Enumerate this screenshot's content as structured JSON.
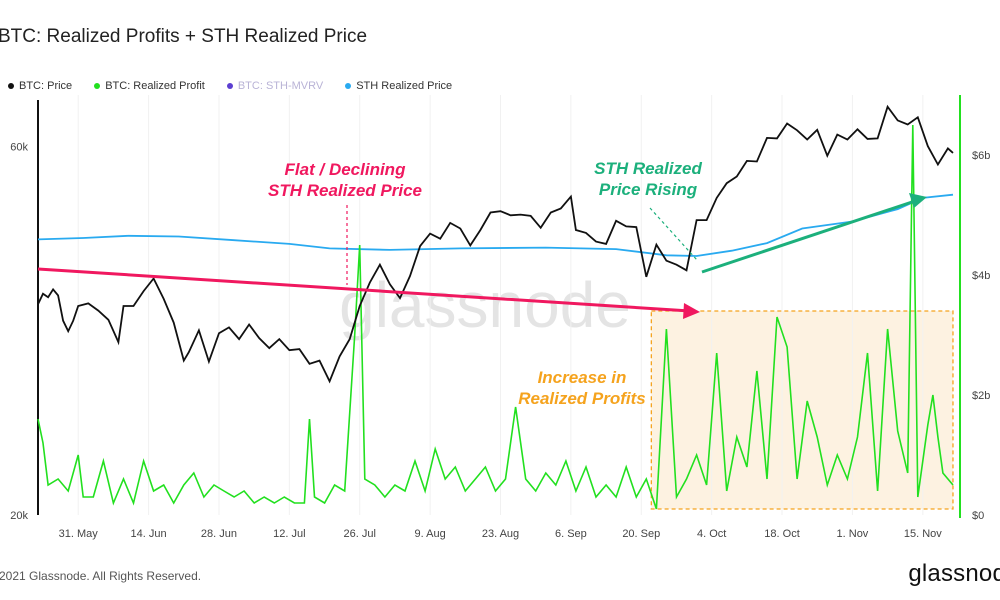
{
  "chart_data": {
    "type": "line",
    "title": "BTC: Realized Profits + STH Realized Price",
    "legend": [
      {
        "name": "BTC: Price",
        "color": "#111111",
        "visible": true
      },
      {
        "name": "BTC: Realized Profit",
        "color": "#22e01f",
        "visible": true
      },
      {
        "name": "BTC: STH-MVRV",
        "color": "#5c3fd1",
        "visible": false
      },
      {
        "name": "STH Realized Price",
        "color": "#29aaf0",
        "visible": true
      }
    ],
    "legend_position": "top-left",
    "grid": true,
    "x_axis": {
      "type": "date",
      "range": [
        "2021-05-23",
        "2021-11-22"
      ],
      "ticks": [
        {
          "date": "2021-05-31",
          "label": "31. May"
        },
        {
          "date": "2021-06-14",
          "label": "14. Jun"
        },
        {
          "date": "2021-06-28",
          "label": "28. Jun"
        },
        {
          "date": "2021-07-12",
          "label": "12. Jul"
        },
        {
          "date": "2021-07-26",
          "label": "26. Jul"
        },
        {
          "date": "2021-08-09",
          "label": "9. Aug"
        },
        {
          "date": "2021-08-23",
          "label": "23. Aug"
        },
        {
          "date": "2021-09-06",
          "label": "6. Sep"
        },
        {
          "date": "2021-09-20",
          "label": "20. Sep"
        },
        {
          "date": "2021-10-04",
          "label": "4. Oct"
        },
        {
          "date": "2021-10-18",
          "label": "18. Oct"
        },
        {
          "date": "2021-11-01",
          "label": "1. Nov"
        },
        {
          "date": "2021-11-15",
          "label": "15. Nov"
        }
      ]
    },
    "y_left": {
      "scale": "log",
      "range": [
        20000,
        70000
      ],
      "ticks": [
        {
          "value": 20000,
          "label": "20k"
        },
        {
          "value": 60000,
          "label": "60k"
        }
      ]
    },
    "y_right": {
      "scale": "linear",
      "range": [
        0,
        7000000000
      ],
      "ticks": [
        {
          "value": 0,
          "label": "$0"
        },
        {
          "value": 2000000000,
          "label": "$2b"
        },
        {
          "value": 4000000000,
          "label": "$4b"
        },
        {
          "value": 6000000000,
          "label": "$6b"
        }
      ]
    },
    "series": [
      {
        "name": "BTC: Price",
        "axis": "left",
        "color": "#111111",
        "points": [
          [
            "2021-05-23",
            37500
          ],
          [
            "2021-05-24",
            38700
          ],
          [
            "2021-05-25",
            38300
          ],
          [
            "2021-05-26",
            39200
          ],
          [
            "2021-05-27",
            38500
          ],
          [
            "2021-05-28",
            35700
          ],
          [
            "2021-05-29",
            34600
          ],
          [
            "2021-05-30",
            35700
          ],
          [
            "2021-05-31",
            37300
          ],
          [
            "2021-06-02",
            37600
          ],
          [
            "2021-06-04",
            36800
          ],
          [
            "2021-06-06",
            35800
          ],
          [
            "2021-06-08",
            33500
          ],
          [
            "2021-06-09",
            37300
          ],
          [
            "2021-06-11",
            37300
          ],
          [
            "2021-06-13",
            39000
          ],
          [
            "2021-06-15",
            40500
          ],
          [
            "2021-06-17",
            38100
          ],
          [
            "2021-06-19",
            35500
          ],
          [
            "2021-06-21",
            31700
          ],
          [
            "2021-06-22",
            32500
          ],
          [
            "2021-06-24",
            34700
          ],
          [
            "2021-06-26",
            31600
          ],
          [
            "2021-06-28",
            34400
          ],
          [
            "2021-06-30",
            35000
          ],
          [
            "2021-07-02",
            33800
          ],
          [
            "2021-07-04",
            35300
          ],
          [
            "2021-07-06",
            33900
          ],
          [
            "2021-07-08",
            32900
          ],
          [
            "2021-07-10",
            33800
          ],
          [
            "2021-07-12",
            32700
          ],
          [
            "2021-07-14",
            32800
          ],
          [
            "2021-07-16",
            31400
          ],
          [
            "2021-07-18",
            31700
          ],
          [
            "2021-07-20",
            29800
          ],
          [
            "2021-07-22",
            32100
          ],
          [
            "2021-07-24",
            33800
          ],
          [
            "2021-07-26",
            37300
          ],
          [
            "2021-07-28",
            40000
          ],
          [
            "2021-07-30",
            42200
          ],
          [
            "2021-08-01",
            39800
          ],
          [
            "2021-08-03",
            38200
          ],
          [
            "2021-08-05",
            40800
          ],
          [
            "2021-08-07",
            44600
          ],
          [
            "2021-08-09",
            46300
          ],
          [
            "2021-08-11",
            45600
          ],
          [
            "2021-08-13",
            47800
          ],
          [
            "2021-08-15",
            47000
          ],
          [
            "2021-08-17",
            44700
          ],
          [
            "2021-08-19",
            46800
          ],
          [
            "2021-08-21",
            49300
          ],
          [
            "2021-08-23",
            49500
          ],
          [
            "2021-08-25",
            48900
          ],
          [
            "2021-08-27",
            49000
          ],
          [
            "2021-08-29",
            48800
          ],
          [
            "2021-08-31",
            47100
          ],
          [
            "2021-09-02",
            49300
          ],
          [
            "2021-09-04",
            49900
          ],
          [
            "2021-09-06",
            51700
          ],
          [
            "2021-09-07",
            46800
          ],
          [
            "2021-09-09",
            46400
          ],
          [
            "2021-09-11",
            45200
          ],
          [
            "2021-09-13",
            44900
          ],
          [
            "2021-09-15",
            48100
          ],
          [
            "2021-09-17",
            47300
          ],
          [
            "2021-09-19",
            47200
          ],
          [
            "2021-09-21",
            40700
          ],
          [
            "2021-09-23",
            44800
          ],
          [
            "2021-09-25",
            42700
          ],
          [
            "2021-09-27",
            42200
          ],
          [
            "2021-09-29",
            41500
          ],
          [
            "2021-10-01",
            48200
          ],
          [
            "2021-10-03",
            48200
          ],
          [
            "2021-10-05",
            51500
          ],
          [
            "2021-10-07",
            53800
          ],
          [
            "2021-10-09",
            54900
          ],
          [
            "2021-10-11",
            57500
          ],
          [
            "2021-10-13",
            57400
          ],
          [
            "2021-10-15",
            61600
          ],
          [
            "2021-10-17",
            61500
          ],
          [
            "2021-10-19",
            64300
          ],
          [
            "2021-10-21",
            63000
          ],
          [
            "2021-10-23",
            61300
          ],
          [
            "2021-10-25",
            63100
          ],
          [
            "2021-10-27",
            58400
          ],
          [
            "2021-10-29",
            62200
          ],
          [
            "2021-10-31",
            61300
          ],
          [
            "2021-11-02",
            63200
          ],
          [
            "2021-11-04",
            61400
          ],
          [
            "2021-11-06",
            61500
          ],
          [
            "2021-11-08",
            67600
          ],
          [
            "2021-11-10",
            64900
          ],
          [
            "2021-11-12",
            64100
          ],
          [
            "2021-11-14",
            65500
          ],
          [
            "2021-11-16",
            60100
          ],
          [
            "2021-11-18",
            56900
          ],
          [
            "2021-11-20",
            59700
          ],
          [
            "2021-11-21",
            58900
          ]
        ]
      },
      {
        "name": "STH Realized Price",
        "axis": "left",
        "color": "#29aaf0",
        "points": [
          [
            "2021-05-23",
            45500
          ],
          [
            "2021-06-01",
            45700
          ],
          [
            "2021-06-10",
            46000
          ],
          [
            "2021-06-20",
            45900
          ],
          [
            "2021-07-01",
            45400
          ],
          [
            "2021-07-12",
            44900
          ],
          [
            "2021-07-20",
            44300
          ],
          [
            "2021-08-01",
            44100
          ],
          [
            "2021-08-15",
            44300
          ],
          [
            "2021-09-01",
            44400
          ],
          [
            "2021-09-15",
            44200
          ],
          [
            "2021-09-25",
            43400
          ],
          [
            "2021-10-01",
            43300
          ],
          [
            "2021-10-08",
            44000
          ],
          [
            "2021-10-15",
            45000
          ],
          [
            "2021-10-22",
            47000
          ],
          [
            "2021-11-01",
            48000
          ],
          [
            "2021-11-10",
            49800
          ],
          [
            "2021-11-15",
            51500
          ],
          [
            "2021-11-21",
            52000
          ]
        ]
      },
      {
        "name": "BTC: Realized Profit",
        "axis": "right",
        "color": "#22e01f",
        "points": [
          [
            "2021-05-23",
            1600000000
          ],
          [
            "2021-05-24",
            1200000000
          ],
          [
            "2021-05-25",
            500000000
          ],
          [
            "2021-05-27",
            600000000
          ],
          [
            "2021-05-29",
            400000000
          ],
          [
            "2021-05-31",
            1000000000
          ],
          [
            "2021-06-01",
            300000000
          ],
          [
            "2021-06-03",
            300000000
          ],
          [
            "2021-06-05",
            900000000
          ],
          [
            "2021-06-07",
            200000000
          ],
          [
            "2021-06-09",
            600000000
          ],
          [
            "2021-06-11",
            200000000
          ],
          [
            "2021-06-13",
            900000000
          ],
          [
            "2021-06-15",
            400000000
          ],
          [
            "2021-06-17",
            500000000
          ],
          [
            "2021-06-19",
            200000000
          ],
          [
            "2021-06-21",
            500000000
          ],
          [
            "2021-06-23",
            700000000
          ],
          [
            "2021-06-25",
            300000000
          ],
          [
            "2021-06-27",
            500000000
          ],
          [
            "2021-06-29",
            400000000
          ],
          [
            "2021-07-01",
            300000000
          ],
          [
            "2021-07-03",
            400000000
          ],
          [
            "2021-07-05",
            200000000
          ],
          [
            "2021-07-07",
            300000000
          ],
          [
            "2021-07-09",
            200000000
          ],
          [
            "2021-07-11",
            300000000
          ],
          [
            "2021-07-13",
            200000000
          ],
          [
            "2021-07-15",
            200000000
          ],
          [
            "2021-07-16",
            1600000000
          ],
          [
            "2021-07-17",
            300000000
          ],
          [
            "2021-07-19",
            200000000
          ],
          [
            "2021-07-21",
            500000000
          ],
          [
            "2021-07-23",
            400000000
          ],
          [
            "2021-07-25",
            3000000000
          ],
          [
            "2021-07-26",
            4500000000
          ],
          [
            "2021-07-27",
            600000000
          ],
          [
            "2021-07-29",
            500000000
          ],
          [
            "2021-07-31",
            300000000
          ],
          [
            "2021-08-02",
            500000000
          ],
          [
            "2021-08-04",
            400000000
          ],
          [
            "2021-08-06",
            900000000
          ],
          [
            "2021-08-08",
            400000000
          ],
          [
            "2021-08-10",
            1100000000
          ],
          [
            "2021-08-12",
            600000000
          ],
          [
            "2021-08-14",
            800000000
          ],
          [
            "2021-08-16",
            400000000
          ],
          [
            "2021-08-18",
            600000000
          ],
          [
            "2021-08-20",
            800000000
          ],
          [
            "2021-08-22",
            400000000
          ],
          [
            "2021-08-24",
            600000000
          ],
          [
            "2021-08-26",
            1800000000
          ],
          [
            "2021-08-28",
            600000000
          ],
          [
            "2021-08-30",
            400000000
          ],
          [
            "2021-09-01",
            700000000
          ],
          [
            "2021-09-03",
            500000000
          ],
          [
            "2021-09-05",
            900000000
          ],
          [
            "2021-09-07",
            400000000
          ],
          [
            "2021-09-09",
            800000000
          ],
          [
            "2021-09-11",
            300000000
          ],
          [
            "2021-09-13",
            500000000
          ],
          [
            "2021-09-15",
            300000000
          ],
          [
            "2021-09-17",
            800000000
          ],
          [
            "2021-09-19",
            300000000
          ],
          [
            "2021-09-21",
            600000000
          ],
          [
            "2021-09-23",
            100000000
          ],
          [
            "2021-09-25",
            3100000000
          ],
          [
            "2021-09-27",
            300000000
          ],
          [
            "2021-09-29",
            600000000
          ],
          [
            "2021-10-01",
            1000000000
          ],
          [
            "2021-10-03",
            500000000
          ],
          [
            "2021-10-05",
            2700000000
          ],
          [
            "2021-10-07",
            400000000
          ],
          [
            "2021-10-09",
            1300000000
          ],
          [
            "2021-10-11",
            800000000
          ],
          [
            "2021-10-13",
            2400000000
          ],
          [
            "2021-10-15",
            600000000
          ],
          [
            "2021-10-17",
            3300000000
          ],
          [
            "2021-10-19",
            2800000000
          ],
          [
            "2021-10-21",
            600000000
          ],
          [
            "2021-10-23",
            1900000000
          ],
          [
            "2021-10-25",
            1300000000
          ],
          [
            "2021-10-27",
            500000000
          ],
          [
            "2021-10-29",
            1000000000
          ],
          [
            "2021-10-31",
            600000000
          ],
          [
            "2021-11-02",
            1300000000
          ],
          [
            "2021-11-04",
            2700000000
          ],
          [
            "2021-11-06",
            400000000
          ],
          [
            "2021-11-08",
            3100000000
          ],
          [
            "2021-11-10",
            1400000000
          ],
          [
            "2021-11-12",
            700000000
          ],
          [
            "2021-11-13",
            6500000000
          ],
          [
            "2021-11-14",
            300000000
          ],
          [
            "2021-11-16",
            1500000000
          ],
          [
            "2021-11-17",
            2000000000
          ],
          [
            "2021-11-18",
            1300000000
          ],
          [
            "2021-11-19",
            700000000
          ],
          [
            "2021-11-21",
            500000000
          ]
        ]
      }
    ],
    "annotations": [
      {
        "id": "flat",
        "line1": "Flat / Declining",
        "line2": "STH Realized Price",
        "color": "#f0185f"
      },
      {
        "id": "rising",
        "line1": "STH Realized",
        "line2": "Price Rising",
        "color": "#1cb07c"
      },
      {
        "id": "profits",
        "line1": "Increase in",
        "line2": "Realized Profits",
        "color": "#f5a31e"
      }
    ],
    "watermark": "glassnode"
  },
  "footer": {
    "copyright": "2021 Glassnode. All Rights Reserved.",
    "brand": "glassnod"
  }
}
